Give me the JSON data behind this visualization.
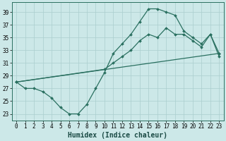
{
  "xlabel": "Humidex (Indice chaleur)",
  "bg_color": "#cce8e8",
  "grid_color": "#aacece",
  "line_color": "#2a7060",
  "xlim": [
    -0.5,
    23.5
  ],
  "ylim": [
    22.0,
    40.5
  ],
  "yticks": [
    23,
    25,
    27,
    29,
    31,
    33,
    35,
    37,
    39
  ],
  "xticks": [
    0,
    1,
    2,
    3,
    4,
    5,
    6,
    7,
    8,
    9,
    10,
    11,
    12,
    13,
    14,
    15,
    16,
    17,
    18,
    19,
    20,
    21,
    22,
    23
  ],
  "line1_x": [
    0,
    1,
    2,
    3,
    4,
    5,
    6,
    7,
    8,
    9,
    10,
    11,
    12,
    13,
    14,
    15,
    16,
    17,
    18,
    19,
    20,
    21,
    22,
    23
  ],
  "line1_y": [
    28.0,
    27.0,
    27.0,
    26.5,
    25.5,
    24.0,
    23.0,
    23.0,
    24.5,
    27.0,
    29.5,
    32.5,
    34.0,
    35.5,
    37.5,
    39.5,
    39.5,
    39.0,
    38.5,
    36.0,
    35.0,
    34.0,
    35.5,
    32.0
  ],
  "line2_x": [
    0,
    10,
    11,
    12,
    13,
    14,
    15,
    16,
    17,
    18,
    19,
    20,
    21,
    22,
    23
  ],
  "line2_y": [
    28.0,
    30.0,
    31.0,
    32.0,
    33.0,
    34.5,
    35.5,
    35.0,
    36.5,
    35.5,
    35.5,
    34.5,
    33.5,
    35.5,
    32.5
  ],
  "line3_x": [
    0,
    23
  ],
  "line3_y": [
    28.0,
    32.5
  ]
}
